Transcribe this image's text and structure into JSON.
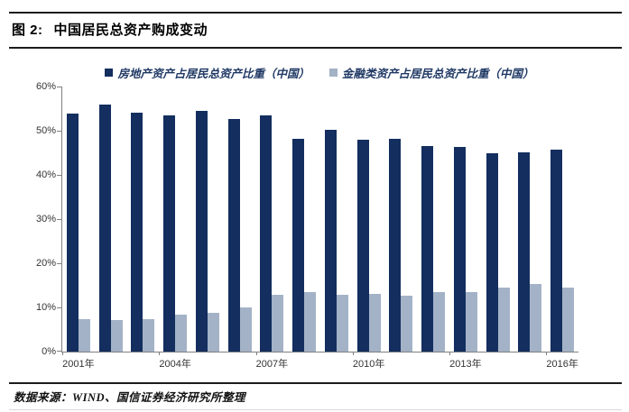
{
  "figure": {
    "label": "图 2:",
    "title": "中国居民总资产购成变动",
    "source": "数据来源：WIND、国信证券经济研究所整理"
  },
  "colors": {
    "real_estate_series": "#132E5F",
    "financial_series": "#A3B2C6",
    "axis": "#808080",
    "rule_dark": "#1C1C1C",
    "rule_light": "#D9D9D9",
    "legend_text": "#1F3864"
  },
  "chart_data": {
    "type": "bar",
    "title": "图 2: 中国居民总资产购成变动",
    "categories": [
      "2001",
      "2002",
      "2003",
      "2004",
      "2005",
      "2006",
      "2007",
      "2008",
      "2009",
      "2010",
      "2011",
      "2012",
      "2013",
      "2014",
      "2015",
      "2016"
    ],
    "series": [
      {
        "name": "房地产资产占居民总资产比重（中国）",
        "color": "#132E5F",
        "values": [
          53.8,
          56.0,
          54.0,
          53.5,
          54.6,
          52.6,
          53.4,
          48.1,
          50.2,
          47.9,
          48.2,
          46.6,
          46.4,
          45.0,
          45.2,
          45.7
        ]
      },
      {
        "name": "金融类资产占居民总资产比重（中国）",
        "color": "#A3B2C6",
        "values": [
          7.3,
          7.1,
          7.4,
          8.4,
          8.8,
          10.0,
          12.9,
          13.4,
          12.8,
          13.0,
          12.7,
          13.4,
          13.4,
          14.4,
          15.3,
          14.4
        ]
      }
    ],
    "xlabel": "",
    "ylabel": "",
    "ylim": [
      0,
      60
    ],
    "y_tick_labels": [
      "0%",
      "10%",
      "20%",
      "30%",
      "40%",
      "50%",
      "60%"
    ],
    "x_tick_labels": [
      "2001年",
      "2004年",
      "2007年",
      "2010年",
      "2013年",
      "2016年"
    ],
    "x_label_interval": 3,
    "grid": false,
    "legend_position": "top"
  }
}
